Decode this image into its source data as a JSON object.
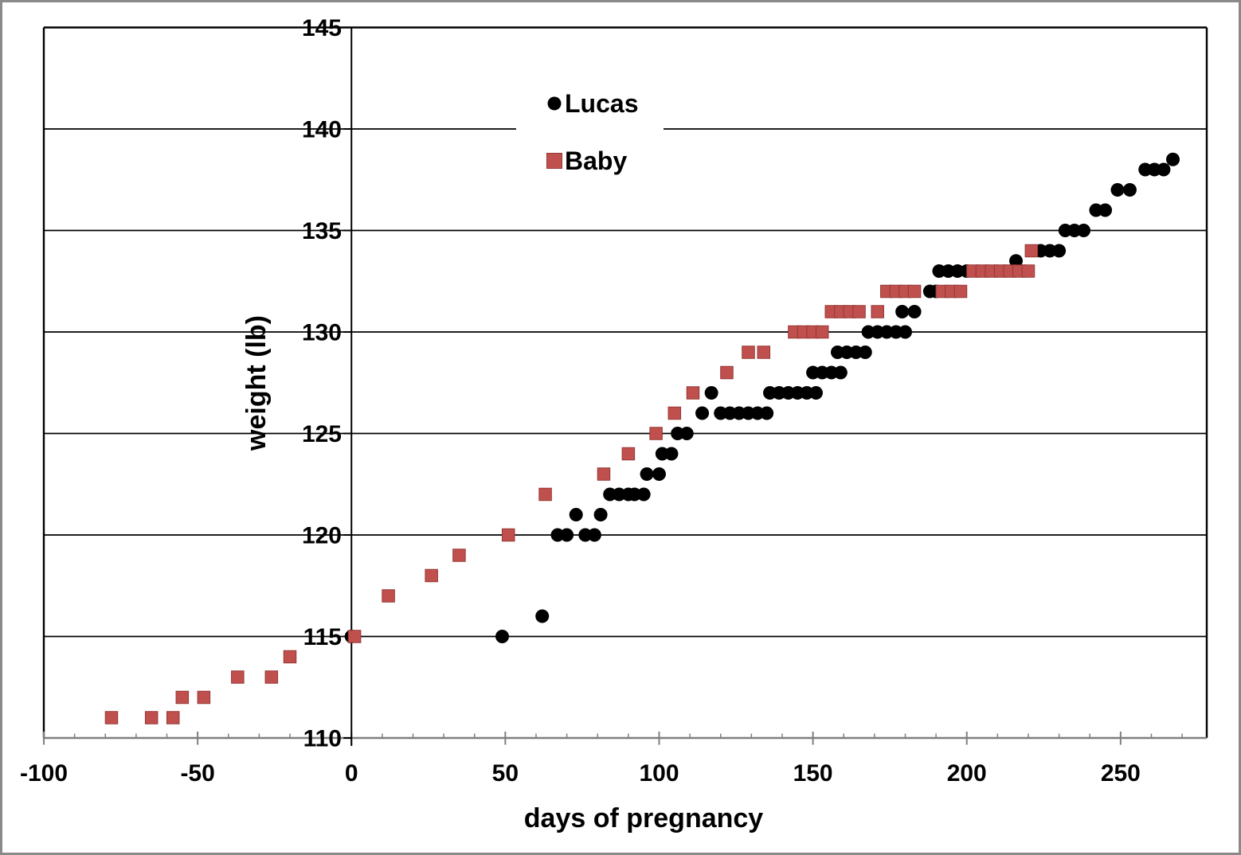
{
  "window": {
    "background": "#ffffff",
    "border_color": "#8a8a8a"
  },
  "chart_data": {
    "type": "scatter",
    "title": "",
    "xlabel": "days of pregnancy",
    "ylabel": "weight (lb)",
    "xlim": [
      -100,
      278
    ],
    "ylim": [
      110,
      145
    ],
    "x_major_ticks": [
      -100,
      -50,
      0,
      50,
      100,
      150,
      200,
      250
    ],
    "x_minor_tick_step": 10,
    "y_ticks": [
      110,
      115,
      120,
      125,
      130,
      135,
      140,
      145
    ],
    "grid": "horizontal-major",
    "grid_color": "#000000",
    "axis_line_color": "#7f7f7f",
    "tick_color": "#7f7f7f",
    "legend": {
      "position": "top-center-inside",
      "background": "#ffffff"
    },
    "series": [
      {
        "name": "Lucas",
        "marker": "circle",
        "color": "#000000",
        "points": [
          [
            0,
            115
          ],
          [
            49,
            115
          ],
          [
            62,
            116
          ],
          [
            67,
            120
          ],
          [
            70,
            120
          ],
          [
            73,
            121
          ],
          [
            76,
            120
          ],
          [
            79,
            120
          ],
          [
            81,
            121
          ],
          [
            84,
            122
          ],
          [
            87,
            122
          ],
          [
            90,
            122
          ],
          [
            92,
            122
          ],
          [
            95,
            122
          ],
          [
            96,
            123
          ],
          [
            100,
            123
          ],
          [
            101,
            124
          ],
          [
            104,
            124
          ],
          [
            106,
            125
          ],
          [
            109,
            125
          ],
          [
            114,
            126
          ],
          [
            117,
            127
          ],
          [
            120,
            126
          ],
          [
            123,
            126
          ],
          [
            126,
            126
          ],
          [
            129,
            126
          ],
          [
            132,
            126
          ],
          [
            135,
            126
          ],
          [
            136,
            127
          ],
          [
            139,
            127
          ],
          [
            142,
            127
          ],
          [
            145,
            127
          ],
          [
            148,
            127
          ],
          [
            151,
            127
          ],
          [
            150,
            128
          ],
          [
            153,
            128
          ],
          [
            156,
            128
          ],
          [
            159,
            128
          ],
          [
            158,
            129
          ],
          [
            161,
            129
          ],
          [
            164,
            129
          ],
          [
            167,
            129
          ],
          [
            168,
            130
          ],
          [
            171,
            130
          ],
          [
            174,
            130
          ],
          [
            177,
            130
          ],
          [
            180,
            130
          ],
          [
            179,
            131
          ],
          [
            183,
            131
          ],
          [
            188,
            132
          ],
          [
            190,
            132
          ],
          [
            191,
            133
          ],
          [
            194,
            133
          ],
          [
            197,
            133
          ],
          [
            200,
            133
          ],
          [
            216,
            133.5
          ],
          [
            224,
            134
          ],
          [
            227,
            134
          ],
          [
            230,
            134
          ],
          [
            232,
            135
          ],
          [
            235,
            135
          ],
          [
            238,
            135
          ],
          [
            242,
            136
          ],
          [
            245,
            136
          ],
          [
            249,
            137
          ],
          [
            253,
            137
          ],
          [
            258,
            138
          ],
          [
            261,
            138
          ],
          [
            264,
            138
          ],
          [
            267,
            138.5
          ]
        ]
      },
      {
        "name": "Baby",
        "marker": "square",
        "color": "#C0504D",
        "border_color": "#953735",
        "points": [
          [
            -78,
            111
          ],
          [
            -65,
            111
          ],
          [
            -58,
            111
          ],
          [
            -55,
            112
          ],
          [
            -48,
            112
          ],
          [
            -37,
            113
          ],
          [
            -26,
            113
          ],
          [
            -20,
            114
          ],
          [
            1,
            115
          ],
          [
            12,
            117
          ],
          [
            26,
            118
          ],
          [
            35,
            119
          ],
          [
            51,
            120
          ],
          [
            63,
            122
          ],
          [
            82,
            123
          ],
          [
            90,
            124
          ],
          [
            99,
            125
          ],
          [
            105,
            126
          ],
          [
            111,
            127
          ],
          [
            122,
            128
          ],
          [
            129,
            129
          ],
          [
            134,
            129
          ],
          [
            144,
            130
          ],
          [
            147,
            130
          ],
          [
            150,
            130
          ],
          [
            153,
            130
          ],
          [
            156,
            131
          ],
          [
            159,
            131
          ],
          [
            162,
            131
          ],
          [
            165,
            131
          ],
          [
            171,
            131
          ],
          [
            174,
            132
          ],
          [
            177,
            132
          ],
          [
            180,
            132
          ],
          [
            183,
            132
          ],
          [
            192,
            132
          ],
          [
            195,
            132
          ],
          [
            198,
            132
          ],
          [
            202,
            133
          ],
          [
            205,
            133
          ],
          [
            208,
            133
          ],
          [
            211,
            133
          ],
          [
            214,
            133
          ],
          [
            217,
            133
          ],
          [
            220,
            133
          ],
          [
            221,
            134
          ]
        ]
      }
    ]
  }
}
